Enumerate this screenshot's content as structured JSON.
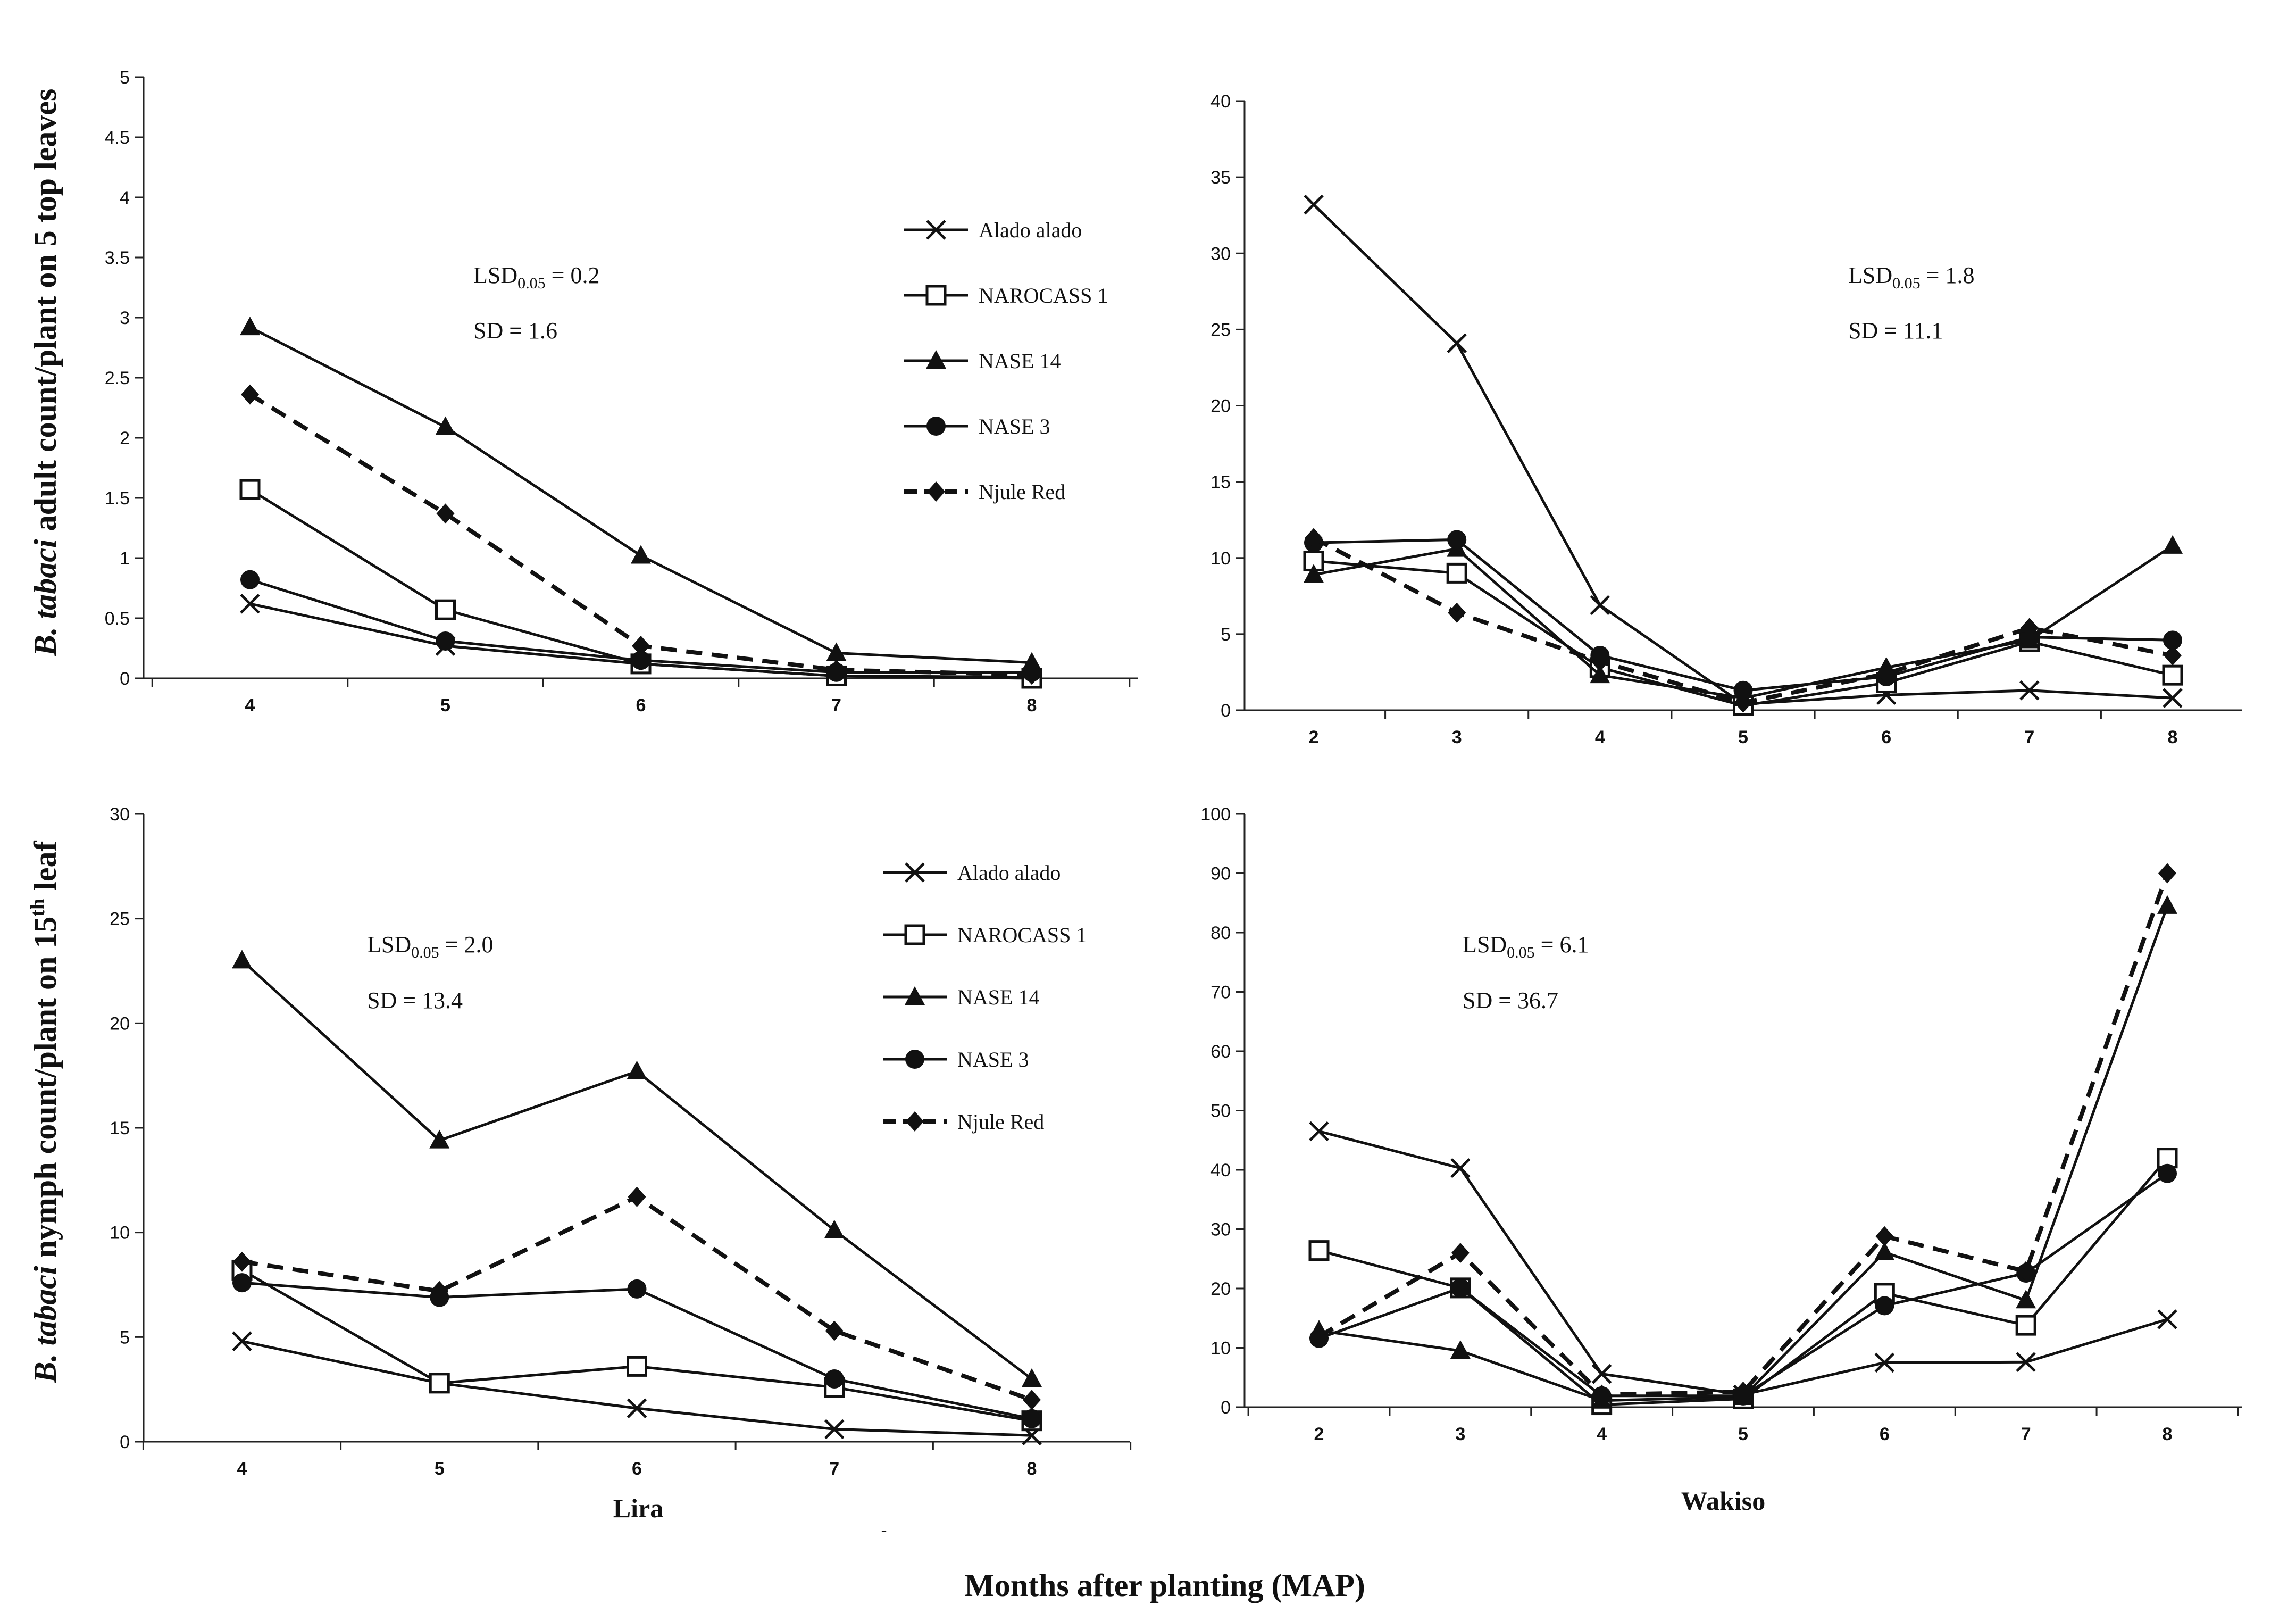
{
  "figure": {
    "xlabel": "Months after planting (MAP)",
    "ylabel_top": {
      "italic": "B. tabaci",
      "rest": " adult count/plant on 5 top leaves"
    },
    "ylabel_bottom": {
      "italic": "B. tabaci",
      "rest_before_sup": " nymph count/plant on 15",
      "sup": "th",
      "rest_after_sup": " leaf"
    },
    "site_labels": [
      "Lira",
      "Wakiso"
    ],
    "stray_mark": "-"
  },
  "series_styles": [
    {
      "name": "Alado alado",
      "marker": "x",
      "dash": false
    },
    {
      "name": "NAROCASS 1",
      "marker": "square-open",
      "dash": false
    },
    {
      "name": "NASE 14",
      "marker": "triangle",
      "dash": false
    },
    {
      "name": "NASE 3",
      "marker": "circle",
      "dash": false
    },
    {
      "name": "Njule Red",
      "marker": "diamond",
      "dash": true
    }
  ],
  "colors": {
    "line": "#111111",
    "axis": "#222222"
  },
  "chart_data": [
    {
      "id": "lira-adult",
      "type": "line",
      "x": [
        4,
        5,
        6,
        7,
        8
      ],
      "ylim": [
        0,
        5
      ],
      "yticks": [
        "0",
        "0.5",
        "1",
        "1.5",
        "2",
        "2.5",
        "3",
        "3.5",
        "4",
        "4.5",
        "5"
      ],
      "legend": "right",
      "lsd_value": "0.2",
      "sd_text": "SD = 1.6",
      "series": [
        {
          "name": "Alado alado",
          "values": [
            0.62,
            0.27,
            0.12,
            0.02,
            0.01
          ]
        },
        {
          "name": "NAROCASS 1",
          "values": [
            1.57,
            0.57,
            0.12,
            0.02,
            0.0
          ]
        },
        {
          "name": "NASE 14",
          "values": [
            2.92,
            2.09,
            1.02,
            0.21,
            0.13
          ]
        },
        {
          "name": "NASE 3",
          "values": [
            0.82,
            0.31,
            0.15,
            0.05,
            0.05
          ]
        },
        {
          "name": "Njule Red",
          "values": [
            2.36,
            1.37,
            0.27,
            0.07,
            0.03
          ]
        }
      ]
    },
    {
      "id": "wakiso-adult",
      "type": "line",
      "x": [
        2,
        3,
        4,
        5,
        6,
        7,
        8
      ],
      "ylim": [
        0,
        40
      ],
      "yticks": [
        "0",
        "5",
        "10",
        "15",
        "20",
        "25",
        "30",
        "35",
        "40"
      ],
      "legend": "none",
      "lsd_value": "1.8",
      "sd_text": "SD = 11.1",
      "series": [
        {
          "name": "Alado alado",
          "values": [
            33.2,
            24.1,
            6.9,
            0.4,
            1.0,
            1.3,
            0.8
          ]
        },
        {
          "name": "NAROCASS 1",
          "values": [
            9.8,
            9.0,
            2.8,
            0.3,
            1.8,
            4.5,
            2.3
          ]
        },
        {
          "name": "NASE 14",
          "values": [
            8.9,
            10.6,
            2.3,
            0.8,
            2.8,
            4.6,
            10.8
          ]
        },
        {
          "name": "NASE 3",
          "values": [
            11.0,
            11.2,
            3.6,
            1.3,
            2.2,
            4.8,
            4.6
          ]
        },
        {
          "name": "Njule Red",
          "values": [
            11.3,
            6.4,
            3.2,
            0.5,
            2.4,
            5.4,
            3.6
          ]
        }
      ]
    },
    {
      "id": "lira-nymph",
      "type": "line",
      "x": [
        4,
        5,
        6,
        7,
        8
      ],
      "ylim": [
        0,
        30
      ],
      "yticks": [
        "0",
        "5",
        "10",
        "15",
        "20",
        "25",
        "30"
      ],
      "legend": "right",
      "lsd_value": "2.0",
      "sd_text": "SD = 13.4",
      "series": [
        {
          "name": "Alado alado",
          "values": [
            4.8,
            2.8,
            1.6,
            0.6,
            0.3
          ]
        },
        {
          "name": "NAROCASS 1",
          "values": [
            8.2,
            2.8,
            3.6,
            2.6,
            1.0
          ]
        },
        {
          "name": "NASE 14",
          "values": [
            23.0,
            14.4,
            17.7,
            10.1,
            3.0
          ]
        },
        {
          "name": "NASE 3",
          "values": [
            7.6,
            6.9,
            7.3,
            3.0,
            1.1
          ]
        },
        {
          "name": "Njule Red",
          "values": [
            8.6,
            7.2,
            11.7,
            5.3,
            2.0
          ]
        }
      ]
    },
    {
      "id": "wakiso-nymph",
      "type": "line",
      "x": [
        2,
        3,
        4,
        5,
        6,
        7,
        8
      ],
      "ylim": [
        0,
        100
      ],
      "yticks": [
        "0",
        "10",
        "20",
        "30",
        "40",
        "50",
        "60",
        "70",
        "80",
        "90",
        "100"
      ],
      "legend": "none",
      "lsd_value": "6.1",
      "sd_text": "SD = 36.7",
      "series": [
        {
          "name": "Alado alado",
          "values": [
            46.5,
            40.3,
            5.6,
            2.1,
            7.5,
            7.6,
            14.8
          ]
        },
        {
          "name": "NAROCASS 1",
          "values": [
            26.4,
            20.1,
            0.4,
            1.4,
            19.2,
            13.8,
            42.0
          ]
        },
        {
          "name": "NASE 14",
          "values": [
            12.9,
            9.5,
            1.1,
            1.7,
            26.1,
            18.0,
            84.5
          ]
        },
        {
          "name": "NASE 3",
          "values": [
            11.6,
            20.1,
            1.9,
            1.9,
            17.1,
            22.6,
            39.4
          ]
        },
        {
          "name": "Njule Red",
          "values": [
            11.9,
            26.0,
            2.1,
            2.6,
            28.8,
            22.9,
            90.0
          ]
        }
      ]
    }
  ]
}
